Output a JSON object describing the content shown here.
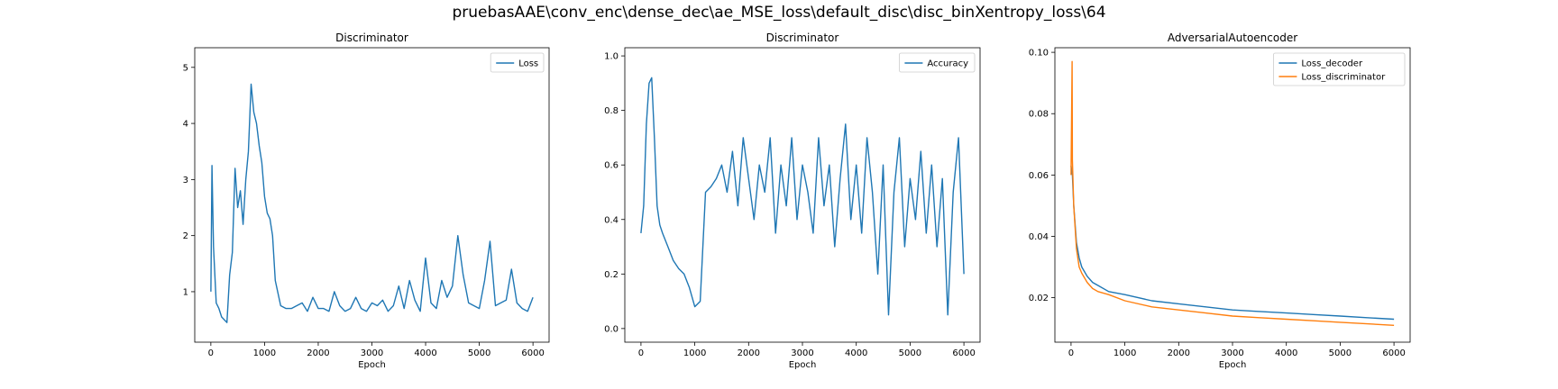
{
  "figure": {
    "suptitle": "pruebasAAE\\conv_enc\\dense_dec\\ae_MSE_loss\\default_disc\\disc_binXentropy_loss\\64"
  },
  "chart_data": [
    {
      "type": "line",
      "title": "Discriminator",
      "xlabel": "Epoch",
      "ylabel": "",
      "xlim": [
        -300,
        6300
      ],
      "ylim": [
        0.1,
        5.35
      ],
      "xticks": [
        0,
        1000,
        2000,
        3000,
        4000,
        5000,
        6000
      ],
      "yticks": [
        1,
        2,
        3,
        4,
        5
      ],
      "ytick_labels": [
        "1",
        "2",
        "3",
        "4",
        "5"
      ],
      "legend_position": "upper right",
      "grid": false,
      "series": [
        {
          "name": "Loss",
          "color": "#1f77b4",
          "x": [
            0,
            20,
            50,
            100,
            150,
            200,
            250,
            300,
            350,
            400,
            450,
            500,
            550,
            600,
            650,
            700,
            750,
            800,
            850,
            900,
            950,
            1000,
            1050,
            1100,
            1150,
            1200,
            1300,
            1400,
            1500,
            1600,
            1700,
            1800,
            1900,
            2000,
            2100,
            2200,
            2300,
            2400,
            2500,
            2600,
            2700,
            2800,
            2900,
            3000,
            3100,
            3200,
            3300,
            3400,
            3500,
            3600,
            3700,
            3800,
            3900,
            4000,
            4100,
            4200,
            4300,
            4400,
            4500,
            4600,
            4700,
            4800,
            4900,
            5000,
            5100,
            5200,
            5300,
            5400,
            5500,
            5600,
            5700,
            5800,
            5900,
            6000
          ],
          "values": [
            1.0,
            3.25,
            1.8,
            0.8,
            0.7,
            0.55,
            0.5,
            0.45,
            1.3,
            1.7,
            3.2,
            2.5,
            2.8,
            2.2,
            3.0,
            3.5,
            4.7,
            4.2,
            4.0,
            3.6,
            3.3,
            2.7,
            2.4,
            2.3,
            2.0,
            1.2,
            0.75,
            0.7,
            0.7,
            0.75,
            0.8,
            0.65,
            0.9,
            0.7,
            0.7,
            0.65,
            1.0,
            0.75,
            0.65,
            0.7,
            0.9,
            0.7,
            0.65,
            0.8,
            0.75,
            0.85,
            0.65,
            0.75,
            1.1,
            0.7,
            1.2,
            0.85,
            0.65,
            1.6,
            0.8,
            0.7,
            1.2,
            0.9,
            1.1,
            2.0,
            1.3,
            0.8,
            0.75,
            0.7,
            1.2,
            1.9,
            0.75,
            0.8,
            0.85,
            1.4,
            0.8,
            0.7,
            0.65,
            0.9
          ]
        }
      ]
    },
    {
      "type": "line",
      "title": "Discriminator",
      "xlabel": "Epoch",
      "ylabel": "",
      "xlim": [
        -300,
        6300
      ],
      "ylim": [
        -0.05,
        1.03
      ],
      "xticks": [
        0,
        1000,
        2000,
        3000,
        4000,
        5000,
        6000
      ],
      "yticks": [
        0.0,
        0.2,
        0.4,
        0.6,
        0.8,
        1.0
      ],
      "ytick_labels": [
        "0.0",
        "0.2",
        "0.4",
        "0.6",
        "0.8",
        "1.0"
      ],
      "legend_position": "upper right",
      "grid": false,
      "series": [
        {
          "name": "Accuracy",
          "color": "#1f77b4",
          "x": [
            0,
            50,
            100,
            150,
            200,
            250,
            300,
            350,
            400,
            500,
            600,
            700,
            800,
            900,
            1000,
            1100,
            1200,
            1300,
            1400,
            1500,
            1600,
            1700,
            1800,
            1900,
            2000,
            2100,
            2200,
            2300,
            2400,
            2500,
            2600,
            2700,
            2800,
            2900,
            3000,
            3100,
            3200,
            3300,
            3400,
            3500,
            3600,
            3700,
            3800,
            3900,
            4000,
            4100,
            4200,
            4300,
            4400,
            4500,
            4600,
            4700,
            4800,
            4900,
            5000,
            5100,
            5200,
            5300,
            5400,
            5500,
            5600,
            5700,
            5800,
            5900,
            6000
          ],
          "values": [
            0.35,
            0.45,
            0.75,
            0.9,
            0.92,
            0.7,
            0.45,
            0.38,
            0.35,
            0.3,
            0.25,
            0.22,
            0.2,
            0.15,
            0.08,
            0.1,
            0.5,
            0.52,
            0.55,
            0.6,
            0.5,
            0.65,
            0.45,
            0.7,
            0.55,
            0.4,
            0.6,
            0.5,
            0.7,
            0.35,
            0.6,
            0.45,
            0.7,
            0.4,
            0.6,
            0.5,
            0.35,
            0.7,
            0.45,
            0.6,
            0.3,
            0.55,
            0.75,
            0.4,
            0.6,
            0.35,
            0.7,
            0.5,
            0.2,
            0.6,
            0.05,
            0.5,
            0.7,
            0.3,
            0.55,
            0.4,
            0.65,
            0.35,
            0.6,
            0.3,
            0.55,
            0.05,
            0.5,
            0.7,
            0.2
          ]
        }
      ]
    },
    {
      "type": "line",
      "title": "AdversarialAutoencoder",
      "xlabel": "Epoch",
      "ylabel": "",
      "xlim": [
        -300,
        6300
      ],
      "ylim": [
        0.0055,
        0.1015
      ],
      "xticks": [
        0,
        1000,
        2000,
        3000,
        4000,
        5000,
        6000
      ],
      "yticks": [
        0.02,
        0.04,
        0.06,
        0.08,
        0.1
      ],
      "ytick_labels": [
        "0.02",
        "0.04",
        "0.06",
        "0.08",
        "0.10"
      ],
      "legend_position": "upper right",
      "grid": false,
      "series": [
        {
          "name": "Loss_decoder",
          "color": "#1f77b4",
          "x": [
            0,
            25,
            50,
            100,
            150,
            200,
            300,
            400,
            500,
            700,
            1000,
            1500,
            2000,
            2500,
            3000,
            3500,
            4000,
            4500,
            5000,
            5500,
            6000
          ],
          "values": [
            0.063,
            0.06,
            0.05,
            0.038,
            0.033,
            0.03,
            0.027,
            0.025,
            0.024,
            0.022,
            0.021,
            0.019,
            0.018,
            0.017,
            0.016,
            0.0155,
            0.015,
            0.0145,
            0.014,
            0.0135,
            0.013
          ]
        },
        {
          "name": "Loss_discriminator",
          "color": "#ff7f0e",
          "x": [
            0,
            20,
            25,
            50,
            100,
            150,
            200,
            300,
            400,
            500,
            700,
            1000,
            1500,
            2000,
            2500,
            3000,
            3500,
            4000,
            4500,
            5000,
            5500,
            6000
          ],
          "values": [
            0.06,
            0.097,
            0.065,
            0.05,
            0.036,
            0.03,
            0.028,
            0.025,
            0.023,
            0.022,
            0.021,
            0.019,
            0.017,
            0.016,
            0.015,
            0.014,
            0.0135,
            0.013,
            0.0125,
            0.012,
            0.0115,
            0.011
          ]
        }
      ]
    }
  ]
}
